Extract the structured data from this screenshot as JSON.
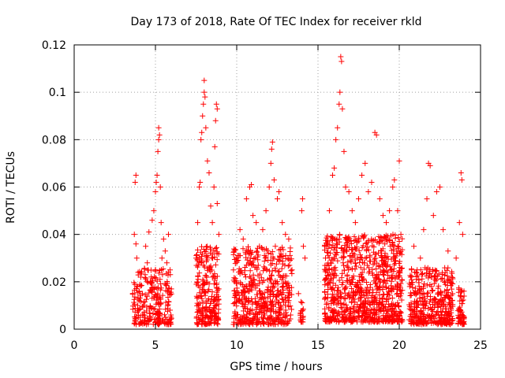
{
  "chart_data": {
    "type": "scatter",
    "title": "Day 173 of 2018, Rate Of TEC Index for receiver rkld",
    "xlabel": "GPS time / hours",
    "ylabel": "ROTI / TECUs",
    "xlim": [
      0,
      25
    ],
    "ylim": [
      0,
      0.12
    ],
    "x_ticks": [
      0,
      5,
      10,
      15,
      20,
      25
    ],
    "y_ticks": [
      0,
      0.02,
      0.04,
      0.06,
      0.08,
      0.1,
      0.12
    ],
    "x_tick_labels": [
      "0",
      "5",
      "10",
      "15",
      "20",
      "25"
    ],
    "y_tick_labels": [
      "0",
      "0.02",
      "0.04",
      "0.06",
      "0.08",
      "0.1",
      "0.12"
    ],
    "grid": true,
    "marker": "+",
    "color": "#ff0000",
    "series": [
      {
        "name": "ROTI",
        "points": [
          [
            3.7,
            0.04
          ],
          [
            3.75,
            0.062
          ],
          [
            3.8,
            0.065
          ],
          [
            3.8,
            0.036
          ],
          [
            3.85,
            0.03
          ],
          [
            3.9,
            0.018
          ],
          [
            3.95,
            0.008
          ],
          [
            4.0,
            0.012
          ],
          [
            4.05,
            0.005
          ],
          [
            4.1,
            0.022
          ],
          [
            4.2,
            0.015
          ],
          [
            4.3,
            0.01
          ],
          [
            4.4,
            0.035
          ],
          [
            4.5,
            0.028
          ],
          [
            4.6,
            0.041
          ],
          [
            4.7,
            0.02
          ],
          [
            4.8,
            0.046
          ],
          [
            4.9,
            0.05
          ],
          [
            5.0,
            0.058
          ],
          [
            5.05,
            0.062
          ],
          [
            5.1,
            0.065
          ],
          [
            5.15,
            0.075
          ],
          [
            5.2,
            0.08
          ],
          [
            5.2,
            0.085
          ],
          [
            5.25,
            0.082
          ],
          [
            5.3,
            0.06
          ],
          [
            5.35,
            0.045
          ],
          [
            5.4,
            0.03
          ],
          [
            5.5,
            0.038
          ],
          [
            5.6,
            0.033
          ],
          [
            5.7,
            0.028
          ],
          [
            5.8,
            0.04
          ],
          [
            5.9,
            0.025
          ],
          [
            5.9,
            0.008
          ],
          [
            7.5,
            0.03
          ],
          [
            7.6,
            0.045
          ],
          [
            7.7,
            0.06
          ],
          [
            7.75,
            0.062
          ],
          [
            7.8,
            0.08
          ],
          [
            7.85,
            0.083
          ],
          [
            7.9,
            0.09
          ],
          [
            7.95,
            0.095
          ],
          [
            8.0,
            0.105
          ],
          [
            8.0,
            0.1
          ],
          [
            8.05,
            0.098
          ],
          [
            8.1,
            0.085
          ],
          [
            8.2,
            0.071
          ],
          [
            8.3,
            0.066
          ],
          [
            8.4,
            0.052
          ],
          [
            8.5,
            0.045
          ],
          [
            8.6,
            0.06
          ],
          [
            8.65,
            0.077
          ],
          [
            8.7,
            0.088
          ],
          [
            8.75,
            0.095
          ],
          [
            8.8,
            0.093
          ],
          [
            8.8,
            0.053
          ],
          [
            8.9,
            0.04
          ],
          [
            9.8,
            0.025
          ],
          [
            9.9,
            0.015
          ],
          [
            10.0,
            0.03
          ],
          [
            10.2,
            0.042
          ],
          [
            10.4,
            0.038
          ],
          [
            10.6,
            0.055
          ],
          [
            10.8,
            0.06
          ],
          [
            10.9,
            0.061
          ],
          [
            11.0,
            0.048
          ],
          [
            11.2,
            0.045
          ],
          [
            11.4,
            0.035
          ],
          [
            11.6,
            0.042
          ],
          [
            11.8,
            0.05
          ],
          [
            12.0,
            0.06
          ],
          [
            12.1,
            0.07
          ],
          [
            12.15,
            0.076
          ],
          [
            12.2,
            0.079
          ],
          [
            12.3,
            0.063
          ],
          [
            12.5,
            0.055
          ],
          [
            12.6,
            0.058
          ],
          [
            12.8,
            0.045
          ],
          [
            13.0,
            0.04
          ],
          [
            13.2,
            0.038
          ],
          [
            13.4,
            0.025
          ],
          [
            13.8,
            0.015
          ],
          [
            14.0,
            0.05
          ],
          [
            14.05,
            0.055
          ],
          [
            14.1,
            0.035
          ],
          [
            14.2,
            0.03
          ],
          [
            15.5,
            0.035
          ],
          [
            15.7,
            0.05
          ],
          [
            15.9,
            0.065
          ],
          [
            16.0,
            0.068
          ],
          [
            16.1,
            0.08
          ],
          [
            16.2,
            0.085
          ],
          [
            16.3,
            0.095
          ],
          [
            16.35,
            0.1
          ],
          [
            16.4,
            0.115
          ],
          [
            16.45,
            0.113
          ],
          [
            16.5,
            0.093
          ],
          [
            16.6,
            0.075
          ],
          [
            16.7,
            0.06
          ],
          [
            16.9,
            0.058
          ],
          [
            17.1,
            0.05
          ],
          [
            17.3,
            0.045
          ],
          [
            17.5,
            0.055
          ],
          [
            17.7,
            0.065
          ],
          [
            17.9,
            0.07
          ],
          [
            18.1,
            0.058
          ],
          [
            18.3,
            0.062
          ],
          [
            18.5,
            0.083
          ],
          [
            18.6,
            0.082
          ],
          [
            18.8,
            0.055
          ],
          [
            19.0,
            0.048
          ],
          [
            19.2,
            0.045
          ],
          [
            19.4,
            0.05
          ],
          [
            19.6,
            0.06
          ],
          [
            19.7,
            0.063
          ],
          [
            19.9,
            0.05
          ],
          [
            20.0,
            0.071
          ],
          [
            20.1,
            0.04
          ],
          [
            20.7,
            0.022
          ],
          [
            20.9,
            0.035
          ],
          [
            21.1,
            0.025
          ],
          [
            21.3,
            0.03
          ],
          [
            21.5,
            0.042
          ],
          [
            21.7,
            0.055
          ],
          [
            21.8,
            0.07
          ],
          [
            21.9,
            0.069
          ],
          [
            22.1,
            0.048
          ],
          [
            22.3,
            0.058
          ],
          [
            22.5,
            0.06
          ],
          [
            22.7,
            0.042
          ],
          [
            23.0,
            0.033
          ],
          [
            23.2,
            0.022
          ],
          [
            23.5,
            0.03
          ],
          [
            23.7,
            0.045
          ],
          [
            23.8,
            0.066
          ],
          [
            23.85,
            0.063
          ],
          [
            23.9,
            0.04
          ]
        ]
      }
    ],
    "dense_clusters": [
      {
        "x_start": 3.6,
        "x_end": 6.0,
        "y_min": 0.002,
        "y_max": 0.026,
        "count": 260
      },
      {
        "x_start": 7.5,
        "x_end": 8.9,
        "y_min": 0.002,
        "y_max": 0.035,
        "count": 240
      },
      {
        "x_start": 9.8,
        "x_end": 13.4,
        "y_min": 0.002,
        "y_max": 0.035,
        "count": 520
      },
      {
        "x_start": 13.9,
        "x_end": 14.1,
        "y_min": 0.003,
        "y_max": 0.012,
        "count": 20
      },
      {
        "x_start": 15.4,
        "x_end": 20.2,
        "y_min": 0.003,
        "y_max": 0.04,
        "count": 900
      },
      {
        "x_start": 20.6,
        "x_end": 23.3,
        "y_min": 0.002,
        "y_max": 0.026,
        "count": 380
      },
      {
        "x_start": 23.6,
        "x_end": 24.0,
        "y_min": 0.002,
        "y_max": 0.018,
        "count": 60
      }
    ]
  }
}
